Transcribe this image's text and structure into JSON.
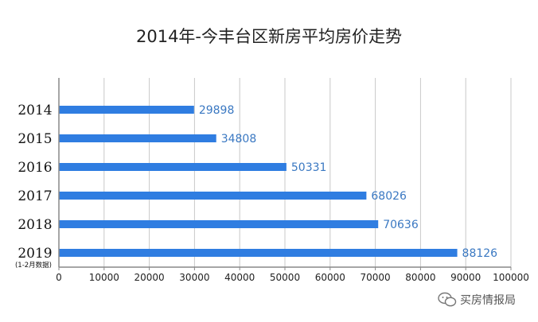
{
  "chart_data": {
    "type": "bar",
    "orientation": "horizontal",
    "title": "2014年-今丰台区新房平均房价走势",
    "categories": [
      "2014",
      "2015",
      "2016",
      "2017",
      "2018",
      "2019"
    ],
    "category_annotation": {
      "category": "2019",
      "text": "(1-2月数据)"
    },
    "values": [
      29898,
      34808,
      50331,
      68026,
      70636,
      88126
    ],
    "xlim": [
      0,
      100000
    ],
    "xticks": [
      0,
      10000,
      20000,
      30000,
      40000,
      50000,
      60000,
      70000,
      80000,
      90000,
      100000
    ],
    "xlabel": "",
    "ylabel": "",
    "grid": "vertical",
    "legend": "none",
    "data_labels": true,
    "colors": {
      "bar": "#2f7de1",
      "label": "#3a78c2",
      "grid": "#c8c8c8",
      "axis": "#888888"
    }
  },
  "watermark": {
    "text": "买房情报局",
    "icon": "wechat-icon"
  }
}
